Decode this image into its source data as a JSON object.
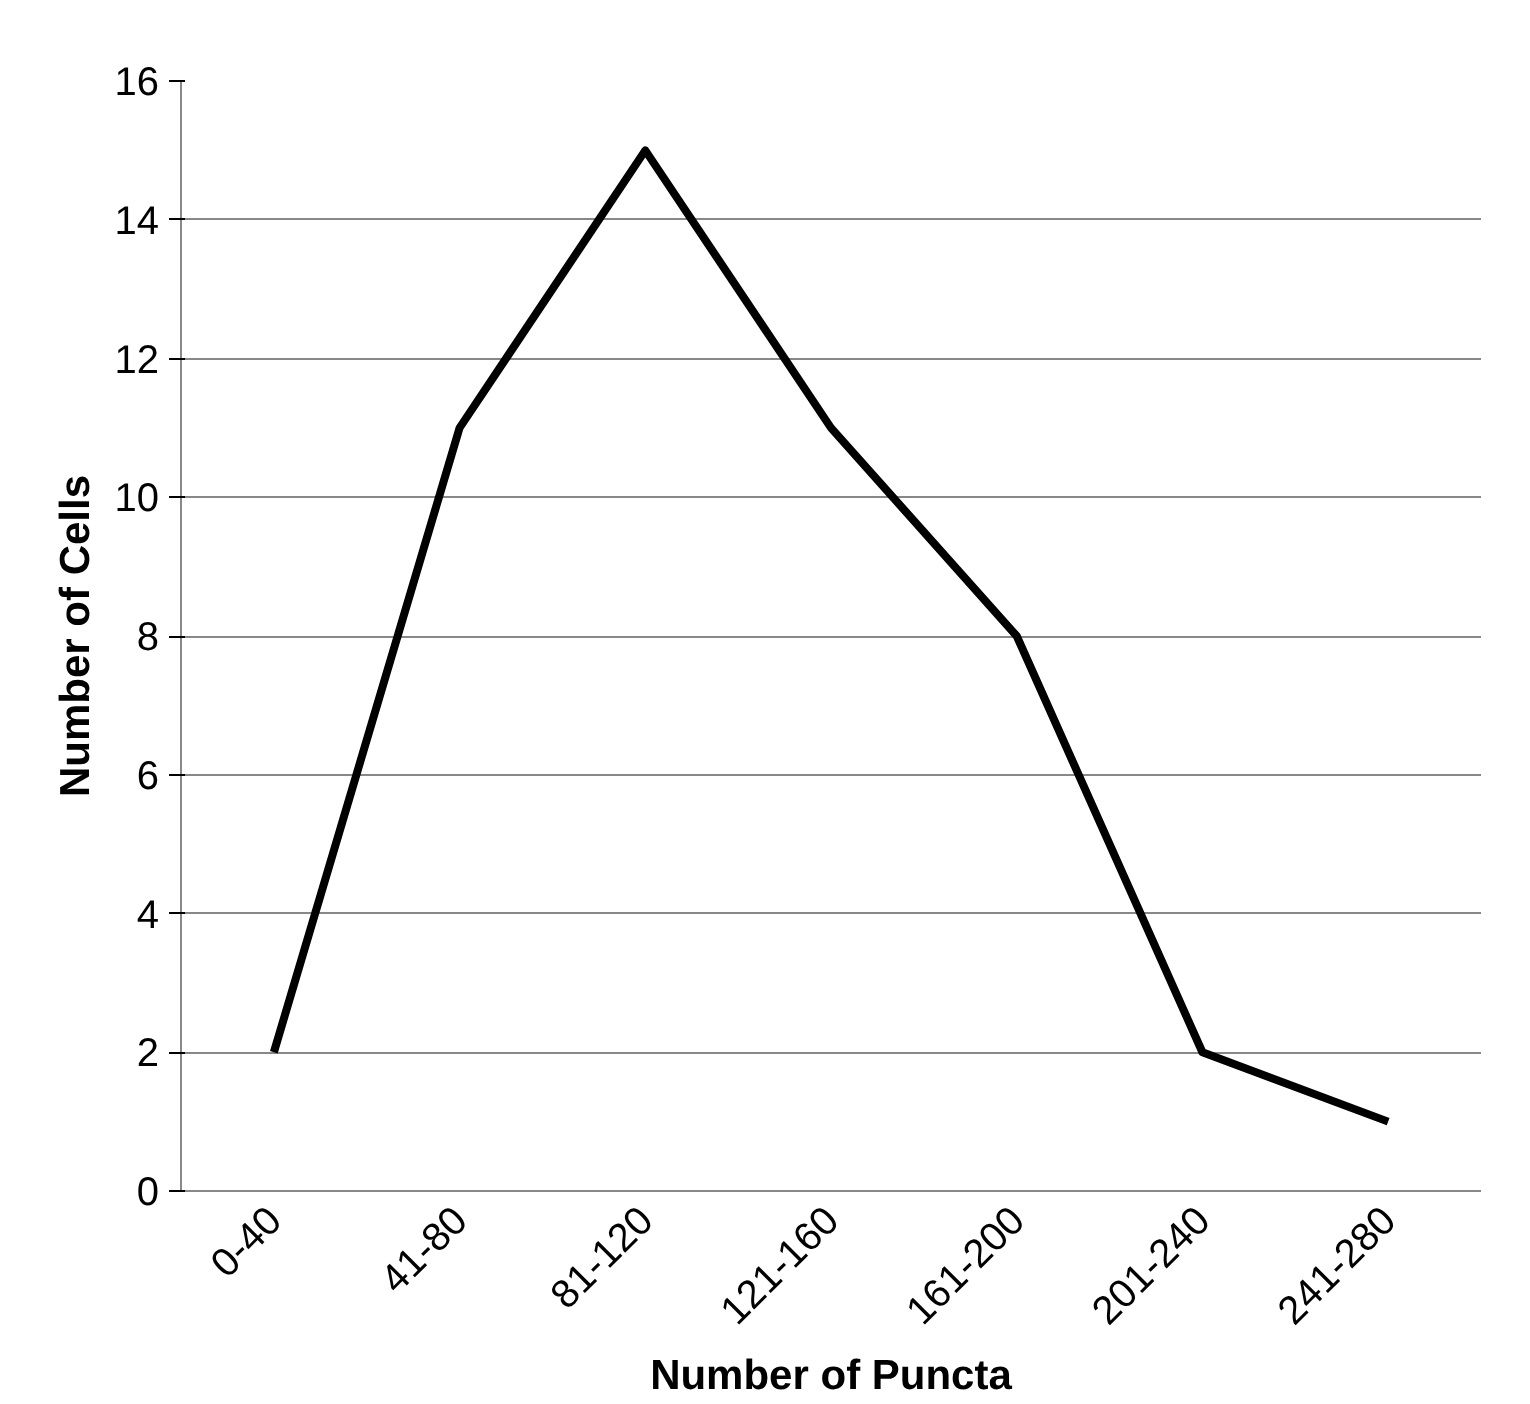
{
  "chart_data": {
    "type": "line",
    "xlabel": "Number of Puncta",
    "ylabel": "Number of Cells",
    "categories": [
      "0-40",
      "41-80",
      "81-120",
      "121-160",
      "161-200",
      "201-240",
      "241-280"
    ],
    "series": [
      {
        "color": "#000000",
        "values": [
          2,
          11,
          15,
          11,
          8,
          2,
          1
        ]
      }
    ],
    "ylim": [
      0,
      16
    ],
    "yticks": [
      0,
      2,
      4,
      6,
      8,
      10,
      12,
      14,
      16
    ],
    "grid": "y",
    "marker": "none",
    "line_style": "solid"
  }
}
